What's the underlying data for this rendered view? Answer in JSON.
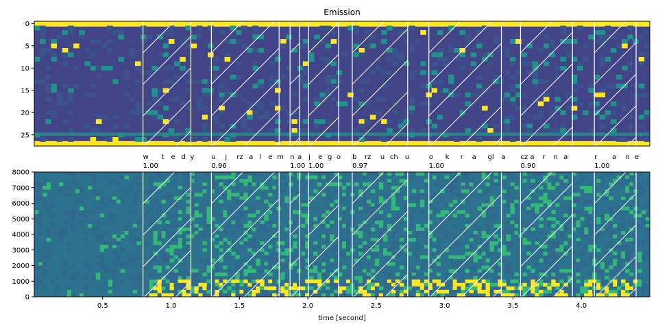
{
  "chart_data": [
    {
      "type": "heatmap",
      "title": "Emission",
      "xlabel": "",
      "ylabel": "",
      "ylim": [
        28,
        0
      ],
      "y_ticks": [
        0,
        5,
        10,
        15,
        20,
        25
      ],
      "colors": {
        "low": "#3b528b",
        "mid": "#21918c",
        "high": "#fde725",
        "bg": "#414487"
      },
      "word_segments": [
        {
          "start": 0.795,
          "end": 1.145
        },
        {
          "start": 1.295,
          "end": 1.79
        },
        {
          "start": 1.87,
          "end": 1.94
        },
        {
          "start": 2.005,
          "end": 2.225
        },
        {
          "start": 2.325,
          "end": 2.73
        },
        {
          "start": 2.885,
          "end": 3.415
        },
        {
          "start": 3.555,
          "end": 3.935
        },
        {
          "start": 4.095,
          "end": 4.4
        }
      ]
    },
    {
      "type": "heatmap",
      "title": "",
      "xlabel": "time [second]",
      "ylabel": "",
      "xlim": [
        0,
        4.5
      ],
      "ylim": [
        0,
        8000
      ],
      "x_ticks": [
        0.5,
        1.0,
        1.5,
        2.0,
        2.5,
        3.0,
        3.5,
        4.0
      ],
      "x_tick_labels": [
        "0.5",
        "1.0",
        "1.5",
        "2.0",
        "2.5",
        "3.0",
        "3.5",
        "4.0"
      ],
      "y_ticks": [
        0,
        1000,
        2000,
        3000,
        4000,
        5000,
        6000,
        7000,
        8000
      ],
      "word_scores": [
        {
          "x": 0.795,
          "score": "1.00"
        },
        {
          "x": 1.295,
          "score": "0.96"
        },
        {
          "x": 1.87,
          "score": "1.00"
        },
        {
          "x": 2.005,
          "score": "1.00"
        },
        {
          "x": 2.325,
          "score": "0.97"
        },
        {
          "x": 2.885,
          "score": "1.00"
        },
        {
          "x": 3.555,
          "score": "0.90"
        },
        {
          "x": 4.095,
          "score": "1.00"
        }
      ],
      "tokens": [
        {
          "x": 0.795,
          "label": "w"
        },
        {
          "x": 0.93,
          "label": "t"
        },
        {
          "x": 1.0,
          "label": "e"
        },
        {
          "x": 1.075,
          "label": "d"
        },
        {
          "x": 1.14,
          "label": "y"
        },
        {
          "x": 1.295,
          "label": "u"
        },
        {
          "x": 1.395,
          "label": "j"
        },
        {
          "x": 1.48,
          "label": "rz"
        },
        {
          "x": 1.57,
          "label": "a"
        },
        {
          "x": 1.645,
          "label": "l"
        },
        {
          "x": 1.71,
          "label": "e"
        },
        {
          "x": 1.775,
          "label": "m"
        },
        {
          "x": 1.87,
          "label": "n"
        },
        {
          "x": 1.925,
          "label": "a"
        },
        {
          "x": 2.005,
          "label": "j"
        },
        {
          "x": 2.075,
          "label": "e"
        },
        {
          "x": 2.145,
          "label": "g"
        },
        {
          "x": 2.21,
          "label": "o"
        },
        {
          "x": 2.325,
          "label": "b"
        },
        {
          "x": 2.415,
          "label": "rz"
        },
        {
          "x": 2.53,
          "label": "u"
        },
        {
          "x": 2.6,
          "label": "ch"
        },
        {
          "x": 2.71,
          "label": "u"
        },
        {
          "x": 2.885,
          "label": "o"
        },
        {
          "x": 3.005,
          "label": "k"
        },
        {
          "x": 3.115,
          "label": "r"
        },
        {
          "x": 3.2,
          "label": "a"
        },
        {
          "x": 3.315,
          "label": "gl"
        },
        {
          "x": 3.415,
          "label": "a"
        },
        {
          "x": 3.555,
          "label": "cz"
        },
        {
          "x": 3.625,
          "label": "a"
        },
        {
          "x": 3.715,
          "label": "r"
        },
        {
          "x": 3.795,
          "label": "n"
        },
        {
          "x": 3.87,
          "label": "a"
        },
        {
          "x": 4.095,
          "label": "r"
        },
        {
          "x": 4.225,
          "label": "a"
        },
        {
          "x": 4.32,
          "label": "n"
        },
        {
          "x": 4.39,
          "label": "e"
        }
      ],
      "colors": {
        "low": "#31688e",
        "mid": "#35b779",
        "high": "#fde725",
        "base": "#2c728e"
      }
    }
  ]
}
